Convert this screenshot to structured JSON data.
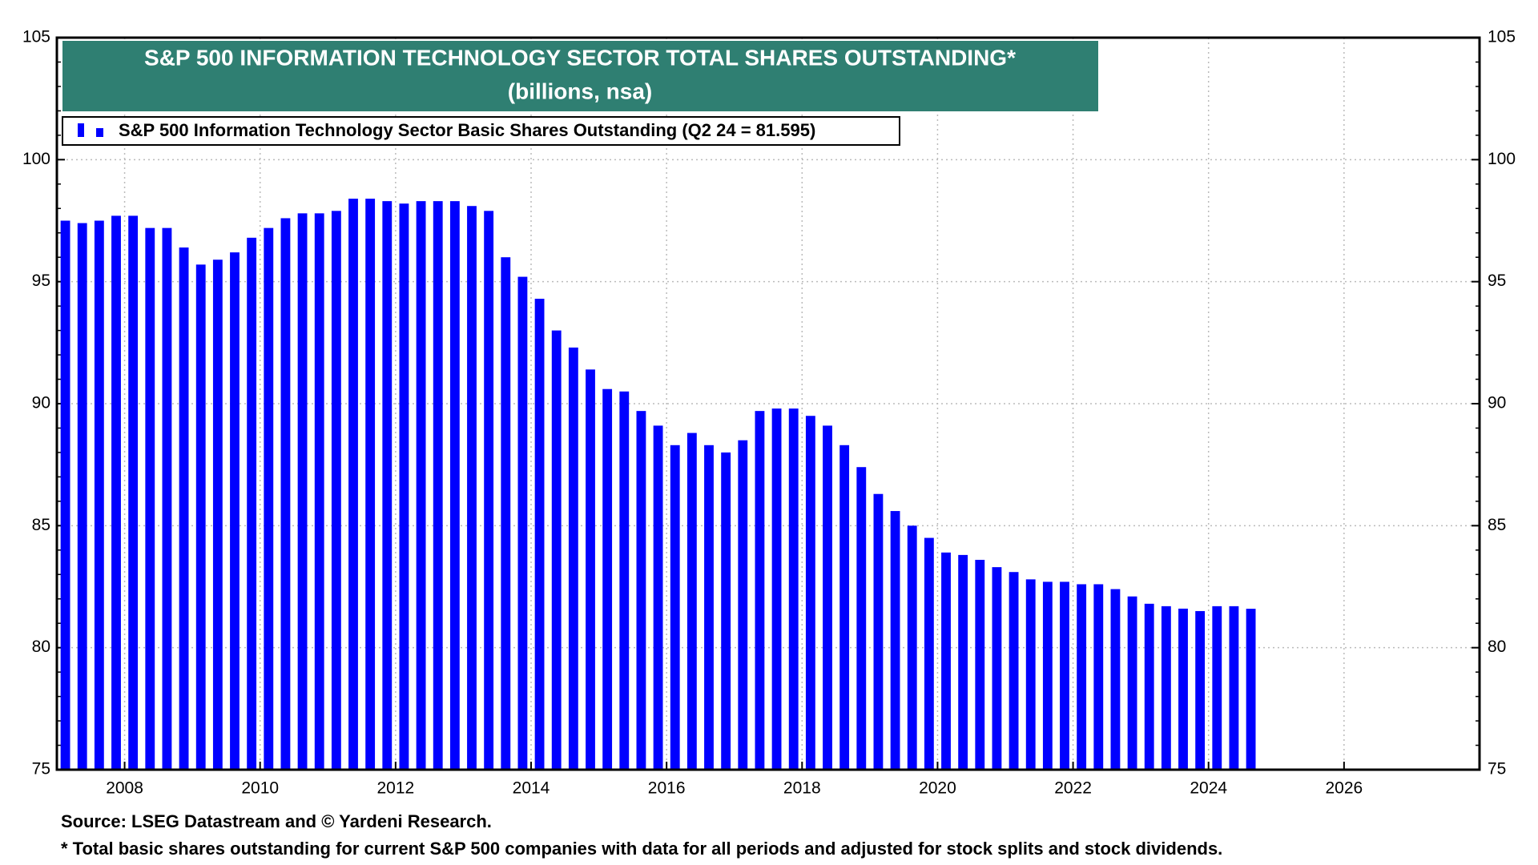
{
  "chart_data": {
    "type": "bar",
    "title": "S&P 500 INFORMATION TECHNOLOGY SECTOR TOTAL SHARES OUTSTANDING*",
    "subtitle": "(billions, nsa)",
    "source": "Source: LSEG Datastream and © Yardeni Research.",
    "footnote": "* Total basic shares outstanding for current S&P 500 companies with data for all periods and adjusted for stock splits and stock dividends.",
    "series": [
      {
        "name": "S&P 500 Information Technology Sector Basic Shares Outstanding (Q2 24 = 81.595)",
        "color": "#0000ff",
        "values": [
          97.5,
          97.4,
          97.5,
          97.7,
          97.7,
          97.2,
          97.2,
          96.4,
          95.7,
          95.9,
          96.2,
          96.8,
          97.2,
          97.6,
          97.8,
          97.8,
          97.9,
          98.4,
          98.4,
          98.3,
          98.2,
          98.3,
          98.3,
          98.3,
          98.1,
          97.9,
          96.0,
          95.2,
          94.3,
          93.0,
          92.3,
          91.4,
          90.6,
          90.5,
          89.7,
          89.1,
          88.3,
          88.8,
          88.3,
          88.0,
          88.5,
          89.7,
          89.8,
          89.8,
          89.5,
          89.1,
          88.3,
          87.4,
          86.3,
          85.6,
          85.0,
          84.5,
          83.9,
          83.8,
          83.6,
          83.3,
          83.1,
          82.8,
          82.7,
          82.7,
          82.6,
          82.6,
          82.4,
          82.1,
          81.8,
          81.7,
          81.6,
          81.5,
          81.7,
          81.7,
          81.595
        ]
      }
    ],
    "xlim": [
      2007,
      2028
    ],
    "xticks": [
      2008,
      2010,
      2012,
      2014,
      2016,
      2018,
      2020,
      2022,
      2024,
      2026
    ],
    "ylim": [
      75,
      105
    ],
    "yticks": [
      75,
      80,
      85,
      90,
      95,
      100,
      105
    ],
    "grid": true
  }
}
